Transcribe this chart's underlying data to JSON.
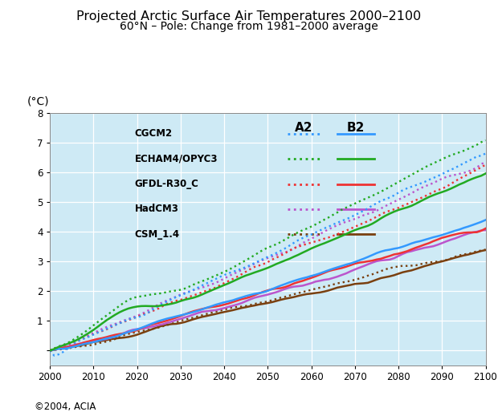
{
  "title": "Projected Arctic Surface Air Temperatures 2000–2100",
  "subtitle": "60°N – Pole: Change from 1981–2000 average",
  "ylabel": "(°C)",
  "xlabel_copyright": "©2004, ACIA",
  "background_color": "#ceeaf5",
  "xlim": [
    2000,
    2100
  ],
  "ylim": [
    -0.5,
    8
  ],
  "yticks": [
    0,
    1,
    2,
    3,
    4,
    5,
    6,
    7,
    8
  ],
  "xticks": [
    2000,
    2010,
    2020,
    2030,
    2040,
    2050,
    2060,
    2070,
    2080,
    2090,
    2100
  ],
  "colors": {
    "CGCM2": "#3399ff",
    "ECHAM4/OPYC3": "#22aa22",
    "GFDL-R30_C": "#ee3333",
    "HadCM3": "#bb55cc",
    "CSM_1.4": "#7a4010"
  },
  "model_names": [
    "CGCM2",
    "ECHAM4/OPYC3",
    "GFDL-R30_C",
    "HadCM3",
    "CSM_1.4"
  ],
  "A2_end": {
    "CGCM2": 6.5,
    "ECHAM4/OPYC3": 7.2,
    "GFDL-R30_C": 6.5,
    "HadCM3": 6.4,
    "CSM_1.4": 3.3
  },
  "B2_end": {
    "CGCM2": 4.4,
    "ECHAM4/OPYC3": 5.8,
    "GFDL-R30_C": 4.4,
    "HadCM3": 4.4,
    "CSM_1.4": 3.4
  }
}
